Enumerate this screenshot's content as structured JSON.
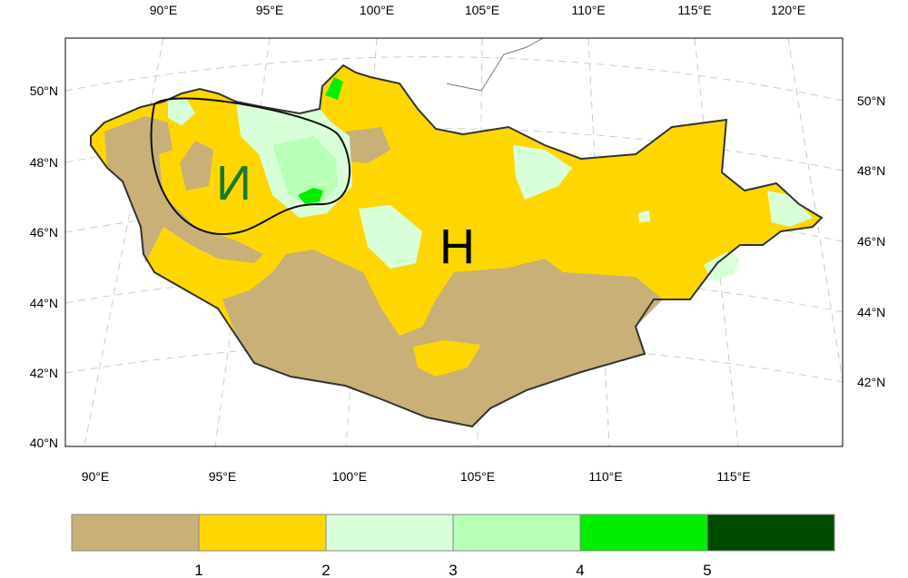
{
  "map": {
    "top_lon_labels": [
      "90°E",
      "95°E",
      "100°E",
      "105°E",
      "110°E",
      "115°E",
      "120°E"
    ],
    "bottom_lon_labels": [
      "90°E",
      "95°E",
      "100°E",
      "105°E",
      "110°E",
      "115°E"
    ],
    "left_lat_labels": [
      "50°N",
      "48°N",
      "46°N",
      "44°N",
      "42°N",
      "40°N"
    ],
    "right_lat_labels": [
      "50°N",
      "48°N",
      "46°N",
      "44°N",
      "42°N"
    ],
    "annotations": [
      {
        "text": "И",
        "color": "#1a7a2a"
      },
      {
        "text": "Н",
        "color": "#000000"
      }
    ]
  },
  "colorbar": {
    "colors": [
      "#c8b078",
      "#ffd700",
      "#d8ffd8",
      "#b8ffb8",
      "#00ee00",
      "#004a00"
    ],
    "labels": [
      "1",
      "2",
      "3",
      "4",
      "5"
    ]
  }
}
